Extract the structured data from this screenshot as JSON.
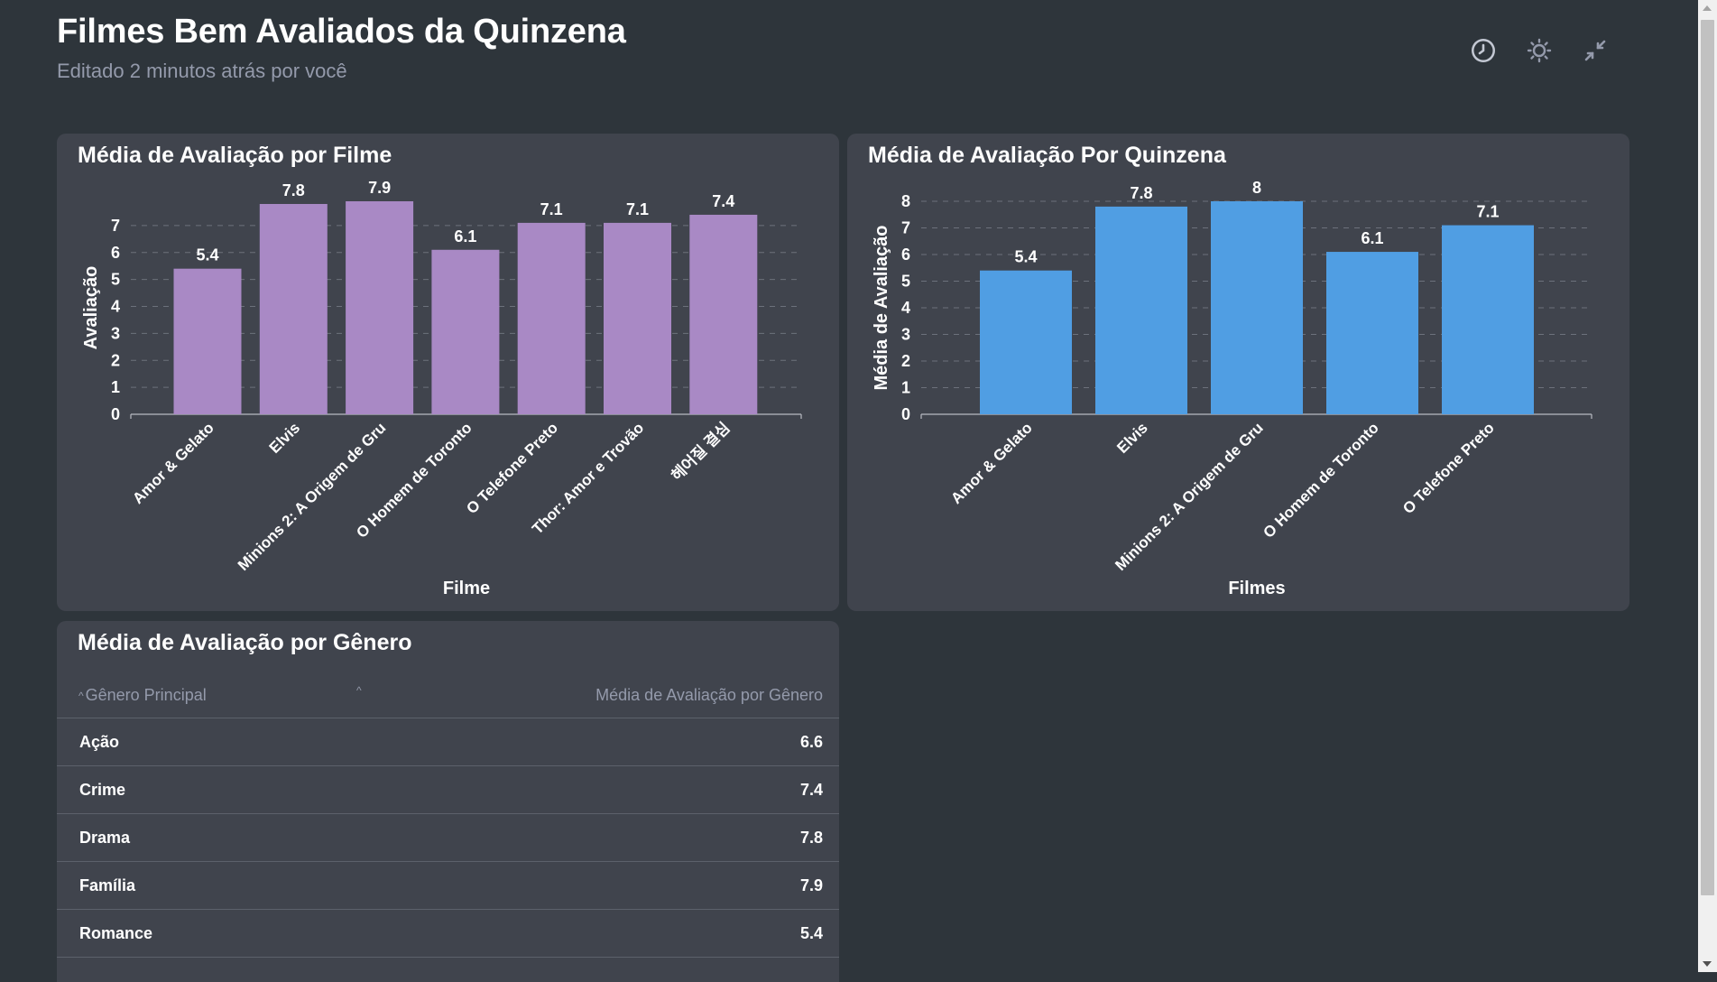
{
  "header": {
    "title": "Filmes Bem Avaliados da Quinzena",
    "subtitle": "Editado 2 minutos atrás por você",
    "icons": [
      "clock-icon",
      "sun-icon",
      "collapse-icon"
    ]
  },
  "colors": {
    "purple": "#a989c5",
    "blue": "#509ee3",
    "card": "#40444d",
    "bg": "#2e353b"
  },
  "cards": {
    "filme": {
      "title": "Média de Avaliação por Filme"
    },
    "quinzena": {
      "title": "Média de Avaliação Por Quinzena"
    },
    "genero": {
      "title": "Média de Avaliação por Gênero"
    }
  },
  "chart_data": [
    {
      "type": "bar",
      "title": "Média de Avaliação por Filme",
      "categories": [
        "Amor & Gelato",
        "Elvis",
        "Minions 2: A Origem de Gru",
        "O Homem de Toronto",
        "O Telefone Preto",
        "Thor: Amor e Trovão",
        "헤어질 결심"
      ],
      "values": [
        5.4,
        7.8,
        7.9,
        6.1,
        7.1,
        7.1,
        7.4
      ],
      "labels": [
        "5.4",
        "7.8",
        "7.9",
        "6.1",
        "7.1",
        "7.1",
        "7.4"
      ],
      "xlabel": "Filme",
      "ylabel": "Avaliação",
      "yticks": [
        "0",
        "1",
        "2",
        "3",
        "4",
        "5",
        "6",
        "7"
      ],
      "ylim": [
        0,
        7.9
      ],
      "grid": true,
      "color": "#a989c5"
    },
    {
      "type": "bar",
      "title": "Média de Avaliação Por Quinzena",
      "categories": [
        "Amor & Gelato",
        "Elvis",
        "Minions 2: A Origem de Gru",
        "O Homem de Toronto",
        "O Telefone Preto"
      ],
      "values": [
        5.4,
        7.8,
        8,
        6.1,
        7.1
      ],
      "labels": [
        "5.4",
        "7.8",
        "8",
        "6.1",
        "7.1"
      ],
      "xlabel": "Filmes",
      "ylabel": "Média de Avaliação",
      "yticks": [
        "0",
        "1",
        "2",
        "3",
        "4",
        "5",
        "6",
        "7",
        "8"
      ],
      "ylim": [
        0,
        8
      ],
      "grid": true,
      "color": "#509ee3"
    }
  ],
  "table": {
    "headers": [
      "Gênero Principal",
      "Média de Avaliação por Gênero"
    ],
    "rows": [
      {
        "genre": "Ação",
        "value": "6.6"
      },
      {
        "genre": "Crime",
        "value": "7.4"
      },
      {
        "genre": "Drama",
        "value": "7.8"
      },
      {
        "genre": "Família",
        "value": "7.9"
      },
      {
        "genre": "Romance",
        "value": "5.4"
      }
    ]
  }
}
